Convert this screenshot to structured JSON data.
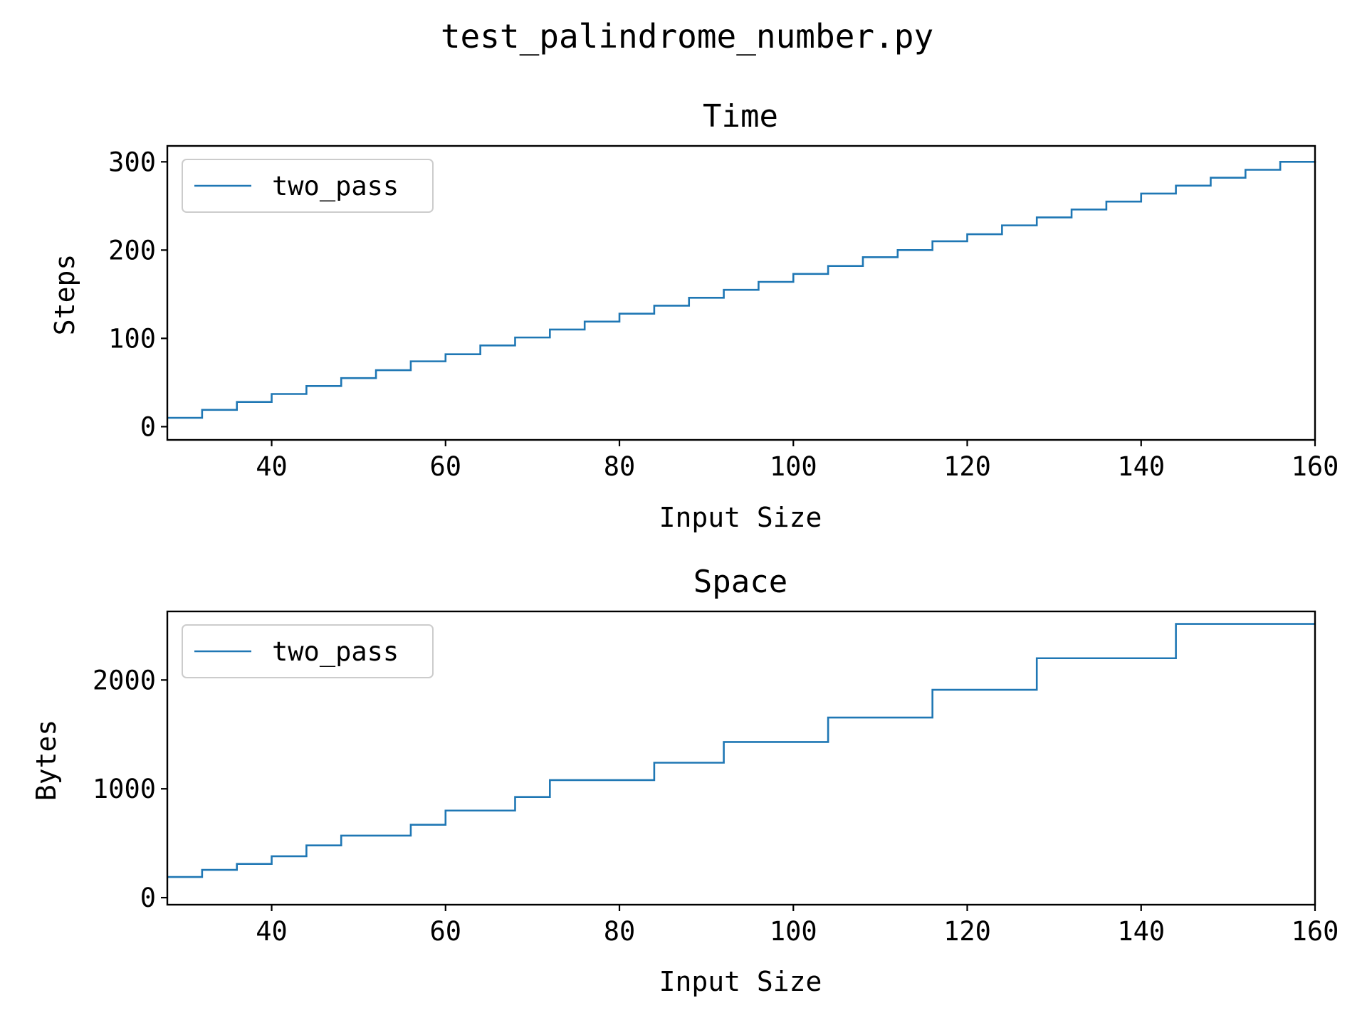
{
  "figure_title": "test_palindrome_number.py",
  "colors": {
    "series": "#1f77b4",
    "axis": "#000000",
    "legend_border": "#cccccc"
  },
  "chart_data": [
    {
      "type": "line",
      "step": "post",
      "title": "Time",
      "xlabel": "Input Size",
      "ylabel": "Steps",
      "xlim": [
        28,
        160
      ],
      "ylim": [
        -15,
        318
      ],
      "xticks": [
        40,
        60,
        80,
        100,
        120,
        140,
        160
      ],
      "yticks": [
        0,
        100,
        200,
        300
      ],
      "grid": false,
      "legend_position": "top-left",
      "series": [
        {
          "name": "two_pass",
          "x": [
            28,
            32,
            36,
            40,
            44,
            48,
            52,
            56,
            60,
            64,
            68,
            72,
            76,
            80,
            84,
            88,
            92,
            96,
            100,
            104,
            108,
            112,
            116,
            120,
            124,
            128,
            132,
            136,
            140,
            144,
            148,
            152,
            156,
            160
          ],
          "y": [
            10,
            19,
            28,
            37,
            46,
            55,
            64,
            74,
            82,
            92,
            101,
            110,
            119,
            128,
            137,
            146,
            155,
            164,
            173,
            182,
            192,
            200,
            210,
            218,
            228,
            237,
            246,
            255,
            264,
            273,
            282,
            291,
            300,
            301
          ]
        }
      ]
    },
    {
      "type": "line",
      "step": "post",
      "title": "Space",
      "xlabel": "Input Size",
      "ylabel": "Bytes",
      "xlim": [
        28,
        160
      ],
      "ylim": [
        -65,
        2630
      ],
      "xticks": [
        40,
        60,
        80,
        100,
        120,
        140,
        160
      ],
      "yticks": [
        0,
        1000,
        2000
      ],
      "grid": false,
      "legend_position": "top-left",
      "series": [
        {
          "name": "two_pass",
          "x": [
            28,
            32,
            36,
            40,
            44,
            48,
            56,
            60,
            68,
            72,
            84,
            92,
            104,
            116,
            128,
            144,
            160
          ],
          "y": [
            190,
            255,
            310,
            380,
            480,
            570,
            670,
            800,
            925,
            1080,
            1240,
            1430,
            1655,
            1910,
            2200,
            2515,
            2515
          ]
        }
      ]
    }
  ]
}
